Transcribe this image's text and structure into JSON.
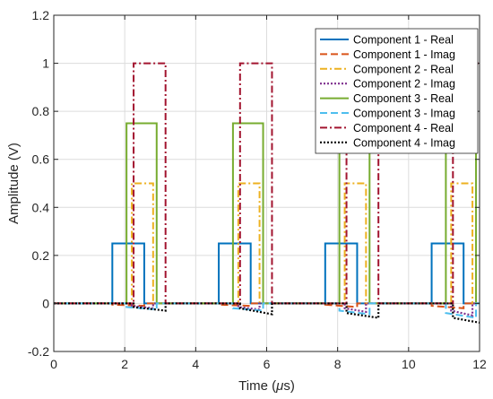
{
  "chart_data": {
    "type": "line",
    "title": "",
    "xlabel_prefix": "Time (",
    "xlabel_unit": "μ",
    "xlabel_suffix": "s)",
    "ylabel": "Amplitude (V)",
    "xlim": [
      0,
      12
    ],
    "ylim": [
      -0.2,
      1.2
    ],
    "xticks": [
      0,
      2,
      4,
      6,
      8,
      10,
      12
    ],
    "yticks": [
      -0.2,
      0,
      0.2,
      0.4,
      0.6,
      0.8,
      1,
      1.2
    ],
    "ytick_labels": [
      "-0.2",
      "0",
      "0.2",
      "0.4",
      "0.6",
      "0.8",
      "1",
      "1.2"
    ],
    "grid": true,
    "legend_position": "top-right",
    "series": [
      {
        "name": "Component 1 - Real",
        "color": "#0072BD",
        "dash": "solid",
        "x": [
          0,
          1.65,
          1.65,
          2.55,
          2.55,
          4.65,
          4.65,
          5.55,
          5.55,
          7.65,
          7.65,
          8.55,
          8.55,
          10.65,
          10.65,
          11.55,
          11.55,
          12
        ],
        "y": [
          0,
          0,
          0.25,
          0.25,
          0,
          0,
          0.25,
          0.25,
          0,
          0,
          0.25,
          0.25,
          0,
          0,
          0.25,
          0.25,
          0,
          0
        ]
      },
      {
        "name": "Component 1 - Imag",
        "color": "#D95319",
        "dash": "8,4",
        "x": [
          0,
          1.65,
          1.65,
          2.55,
          2.55,
          4.65,
          4.65,
          5.55,
          5.55,
          7.65,
          7.65,
          8.55,
          8.55,
          10.65,
          10.65,
          11.55,
          11.55,
          12
        ],
        "y": [
          0,
          0,
          -0.005,
          -0.01,
          0,
          0,
          -0.005,
          -0.01,
          0,
          0,
          -0.005,
          -0.015,
          0,
          0,
          -0.01,
          -0.02,
          0,
          0
        ]
      },
      {
        "name": "Component 2 - Real",
        "color": "#EDB120",
        "dash": "8,3,2,3",
        "x": [
          0,
          2.2,
          2.2,
          2.8,
          2.8,
          5.2,
          5.2,
          5.8,
          5.8,
          8.2,
          8.2,
          8.8,
          8.8,
          11.2,
          11.2,
          11.8,
          11.8,
          12
        ],
        "y": [
          0,
          0,
          0.5,
          0.5,
          0,
          0,
          0.5,
          0.5,
          0,
          0,
          0.5,
          0.5,
          0,
          0,
          0.5,
          0.5,
          0,
          0
        ]
      },
      {
        "name": "Component 2 - Imag",
        "color": "#7E2F8E",
        "dash": "2,2",
        "x": [
          0,
          2.2,
          2.2,
          2.8,
          2.8,
          5.2,
          5.2,
          5.8,
          5.8,
          8.2,
          8.2,
          8.8,
          8.8,
          11.2,
          11.2,
          11.8,
          11.8,
          12
        ],
        "y": [
          0,
          0,
          -0.01,
          -0.02,
          0,
          0,
          -0.015,
          -0.025,
          0,
          0,
          -0.02,
          -0.035,
          0,
          0,
          -0.03,
          -0.05,
          0,
          0
        ]
      },
      {
        "name": "Component 3 - Real",
        "color": "#77AC30",
        "dash": "solid",
        "x": [
          0,
          2.05,
          2.05,
          2.9,
          2.9,
          5.05,
          5.05,
          5.9,
          5.9,
          8.05,
          8.05,
          8.9,
          8.9,
          11.05,
          11.05,
          11.9,
          11.9,
          12
        ],
        "y": [
          0,
          0,
          0.75,
          0.75,
          0,
          0,
          0.75,
          0.75,
          0,
          0,
          0.75,
          0.75,
          0,
          0,
          0.75,
          0.75,
          0,
          0
        ]
      },
      {
        "name": "Component 3 - Imag",
        "color": "#4DBEEE",
        "dash": "8,4",
        "x": [
          0,
          2.05,
          2.05,
          2.9,
          2.9,
          5.05,
          5.05,
          5.9,
          5.9,
          8.05,
          8.05,
          8.9,
          8.9,
          11.05,
          11.05,
          11.9,
          11.9,
          12
        ],
        "y": [
          0,
          0,
          -0.015,
          -0.025,
          0,
          0,
          -0.02,
          -0.03,
          0,
          0,
          -0.03,
          -0.045,
          0,
          0,
          -0.04,
          -0.06,
          0,
          0
        ]
      },
      {
        "name": "Component 4 - Real",
        "color": "#A2142F",
        "dash": "8,3,2,3",
        "x": [
          0,
          2.25,
          2.25,
          3.15,
          3.15,
          5.25,
          5.25,
          6.15,
          6.15,
          8.25,
          8.25,
          9.15,
          9.15,
          11.25,
          11.25,
          12
        ],
        "y": [
          0,
          0,
          1,
          1,
          0,
          0,
          1,
          1,
          0,
          0,
          1,
          1,
          0,
          0,
          1,
          1
        ]
      },
      {
        "name": "Component 4 - Imag",
        "color": "#000000",
        "dash": "2,2",
        "x": [
          0,
          2.25,
          2.25,
          3.15,
          3.15,
          5.25,
          5.25,
          6.15,
          6.15,
          8.25,
          8.25,
          9.15,
          9.15,
          11.25,
          11.25,
          12
        ],
        "y": [
          0,
          0,
          -0.015,
          -0.03,
          0,
          0,
          -0.02,
          -0.045,
          0,
          0,
          -0.04,
          -0.06,
          0,
          0,
          -0.06,
          -0.08
        ]
      }
    ]
  }
}
